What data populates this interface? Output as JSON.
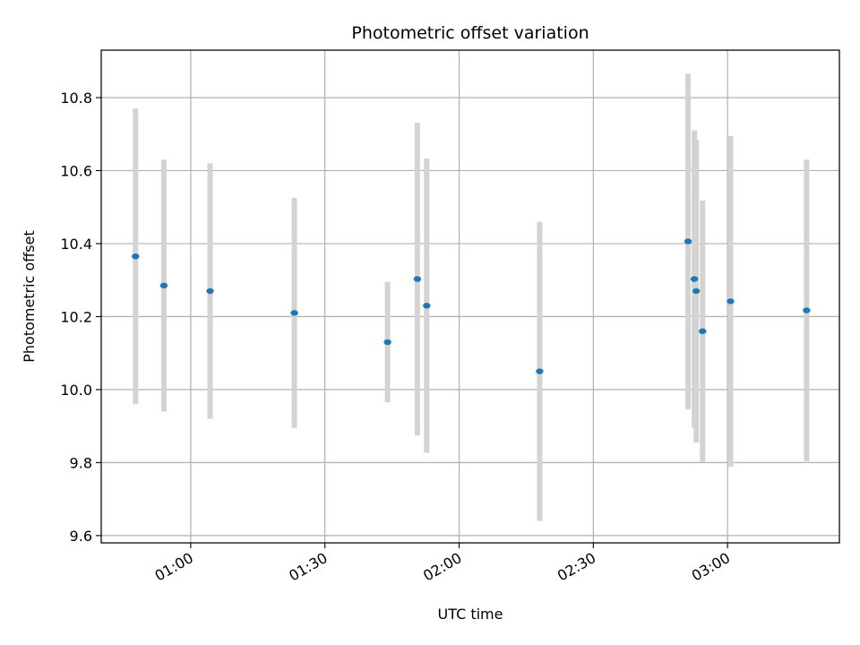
{
  "chart_data": {
    "type": "scatter",
    "title": "Photometric offset variation",
    "xlabel": "UTC time",
    "ylabel": "Photometric offset",
    "x_is_time": true,
    "xlim": [
      "00:40",
      "03:25"
    ],
    "ylim": [
      9.58,
      10.93
    ],
    "x_ticks": [
      "01:00",
      "01:30",
      "02:00",
      "02:30",
      "03:00"
    ],
    "y_ticks": [
      9.6,
      9.8,
      10.0,
      10.2,
      10.4,
      10.6,
      10.8
    ],
    "grid": true,
    "colors": {
      "point": "#1f77b4",
      "errorbar": "#d3d3d3",
      "grid": "#b0b0b0",
      "axes": "#000000"
    },
    "points": [
      {
        "x": "00:47:40",
        "y": 10.365,
        "yerr": 0.405
      },
      {
        "x": "00:54:00",
        "y": 10.285,
        "yerr": 0.345
      },
      {
        "x": "01:04:20",
        "y": 10.27,
        "yerr": 0.35
      },
      {
        "x": "01:23:10",
        "y": 10.21,
        "yerr": 0.315
      },
      {
        "x": "01:44:00",
        "y": 10.13,
        "yerr": 0.165
      },
      {
        "x": "01:50:40",
        "y": 10.303,
        "yerr": 0.428
      },
      {
        "x": "01:52:45",
        "y": 10.23,
        "yerr": 0.403
      },
      {
        "x": "02:18:00",
        "y": 10.05,
        "yerr": 0.41
      },
      {
        "x": "02:51:10",
        "y": 10.406,
        "yerr": 0.46
      },
      {
        "x": "02:52:35",
        "y": 10.303,
        "yerr": 0.407
      },
      {
        "x": "02:53:00",
        "y": 10.27,
        "yerr": 0.415
      },
      {
        "x": "02:54:25",
        "y": 10.16,
        "yerr": 0.358
      },
      {
        "x": "03:00:40",
        "y": 10.242,
        "yerr": 0.453
      },
      {
        "x": "03:17:40",
        "y": 10.217,
        "yerr": 0.413
      }
    ]
  }
}
